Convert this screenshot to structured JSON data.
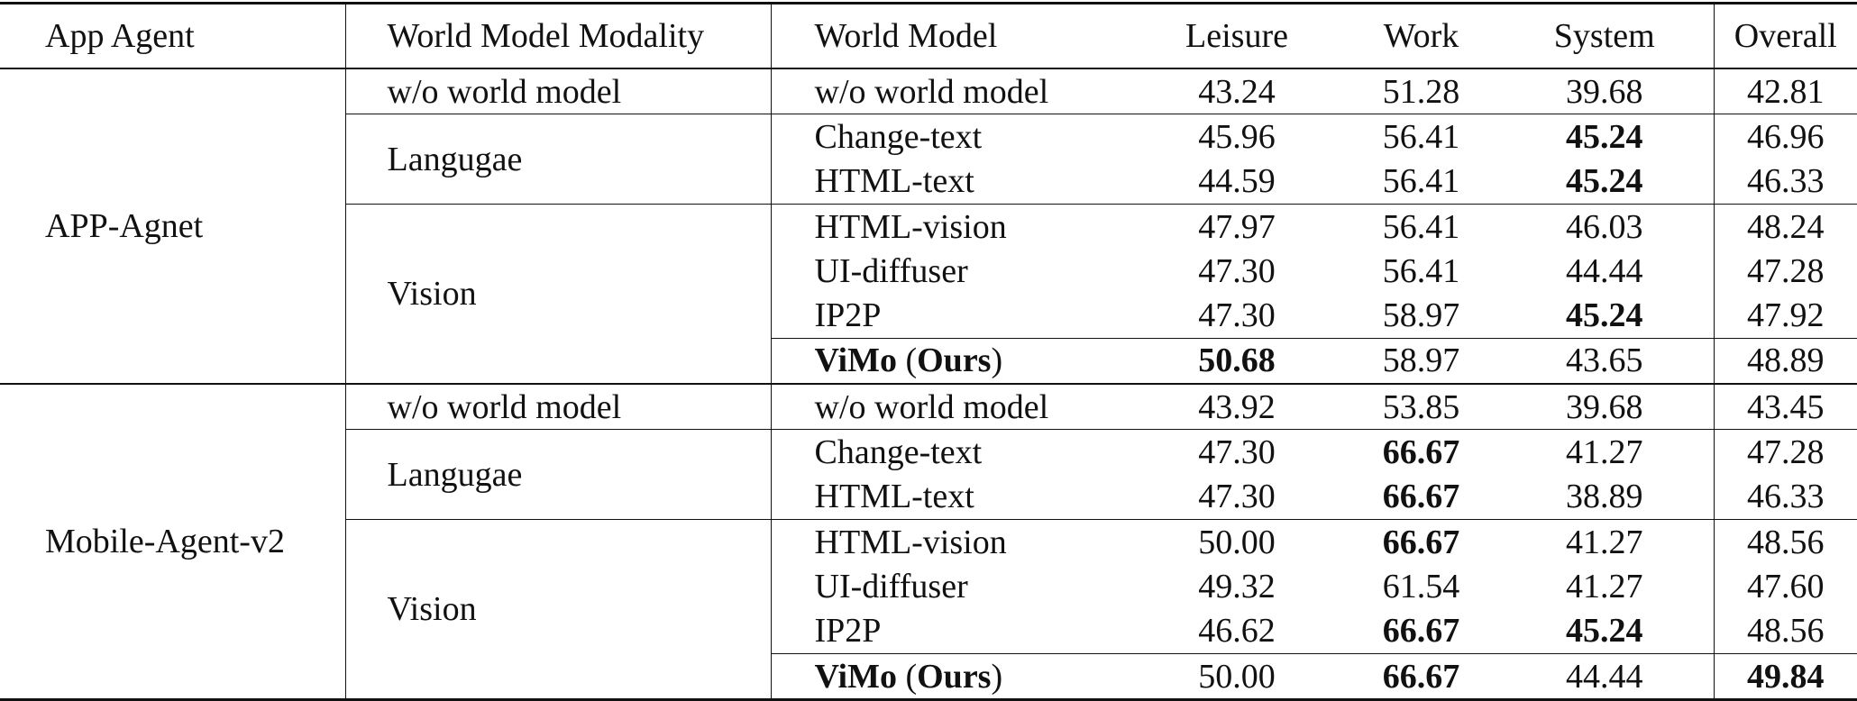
{
  "table": {
    "headers": {
      "app_agent": "App Agent",
      "modality": "World Model Modality",
      "model": "World Model",
      "leisure": "Leisure",
      "work": "Work",
      "system": "System",
      "overall": "Overall"
    },
    "groups": [
      {
        "agent": "APP-Agnet",
        "modalities": [
          "w/o world model",
          "Langugae",
          "Vision"
        ],
        "rows": [
          {
            "model": "w/o world model",
            "leisure": "43.24",
            "work": "51.28",
            "system": "39.68",
            "overall": "42.81"
          },
          {
            "model": "Change-text",
            "leisure": "45.96",
            "work": "56.41",
            "system": "45.24",
            "overall": "46.96"
          },
          {
            "model": "HTML-text",
            "leisure": "44.59",
            "work": "56.41",
            "system": "45.24",
            "overall": "46.33"
          },
          {
            "model": "HTML-vision",
            "leisure": "47.97",
            "work": "56.41",
            "system": "46.03",
            "overall": "48.24"
          },
          {
            "model": "UI-diffuser",
            "leisure": "47.30",
            "work": "56.41",
            "system": "44.44",
            "overall": "47.28"
          },
          {
            "model": "IP2P",
            "leisure": "47.30",
            "work": "58.97",
            "system": "45.24",
            "overall": "47.92"
          },
          {
            "model_bold": "ViMo",
            "model_open": " (",
            "model_ours": "Ours",
            "model_close": ")",
            "leisure": "50.68",
            "work": "58.97",
            "system": "43.65",
            "overall": "48.89"
          }
        ]
      },
      {
        "agent": "Mobile-Agent-v2",
        "modalities": [
          "w/o world model",
          "Langugae",
          "Vision"
        ],
        "rows": [
          {
            "model": "w/o world model",
            "leisure": "43.92",
            "work": "53.85",
            "system": "39.68",
            "overall": "43.45"
          },
          {
            "model": "Change-text",
            "leisure": "47.30",
            "work": "66.67",
            "system": "41.27",
            "overall": "47.28"
          },
          {
            "model": "HTML-text",
            "leisure": "47.30",
            "work": "66.67",
            "system": "38.89",
            "overall": "46.33"
          },
          {
            "model": "HTML-vision",
            "leisure": "50.00",
            "work": "66.67",
            "system": "41.27",
            "overall": "48.56"
          },
          {
            "model": "UI-diffuser",
            "leisure": "49.32",
            "work": "61.54",
            "system": "41.27",
            "overall": "47.60"
          },
          {
            "model": "IP2P",
            "leisure": "46.62",
            "work": "66.67",
            "system": "45.24",
            "overall": "48.56"
          },
          {
            "model_bold": "ViMo",
            "model_open": " (",
            "model_ours": "Ours",
            "model_close": ")",
            "leisure": "50.00",
            "work": "66.67",
            "system": "44.44",
            "overall": "49.84"
          }
        ]
      }
    ]
  }
}
